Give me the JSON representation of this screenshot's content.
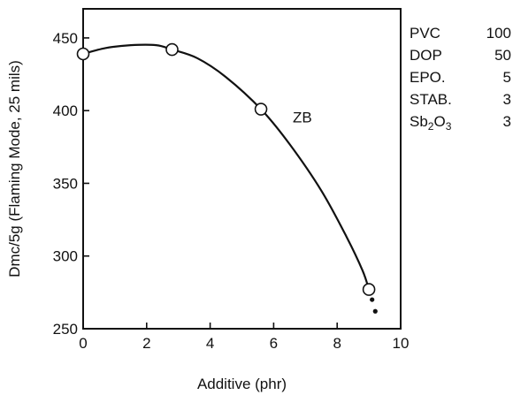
{
  "chart_data": {
    "type": "line",
    "title": "",
    "xlabel": "Additive (phr)",
    "ylabel": "Dmc/5g (Flaming Mode, 25 mils)",
    "xlim": [
      0,
      10
    ],
    "ylim": [
      250,
      470
    ],
    "x_ticks": [
      0,
      2,
      4,
      6,
      8,
      10
    ],
    "y_ticks": [
      250,
      300,
      350,
      400,
      450
    ],
    "grid": false,
    "series": [
      {
        "name": "ZB",
        "marker": "open-circle",
        "points": [
          [
            0.0,
            439
          ],
          [
            2.8,
            442
          ],
          [
            5.6,
            401
          ],
          [
            9.0,
            277
          ]
        ],
        "curve": [
          [
            0.0,
            439
          ],
          [
            0.7,
            443
          ],
          [
            1.5,
            445
          ],
          [
            2.3,
            445
          ],
          [
            2.8,
            442
          ],
          [
            3.6,
            436
          ],
          [
            4.5,
            423
          ],
          [
            5.6,
            401
          ],
          [
            6.5,
            377
          ],
          [
            7.5,
            345
          ],
          [
            8.3,
            313
          ],
          [
            8.8,
            290
          ],
          [
            9.0,
            277
          ]
        ]
      }
    ],
    "extra_points": [
      [
        9.1,
        270
      ],
      [
        9.2,
        262
      ]
    ],
    "annotations": [
      {
        "text": "ZB",
        "x": 6.6,
        "y": 392
      }
    ],
    "formulation": [
      {
        "name": "PVC",
        "value": "100"
      },
      {
        "name": "DOP",
        "value": "50"
      },
      {
        "name": "EPO.",
        "value": "5"
      },
      {
        "name": "STAB.",
        "value": "3"
      },
      {
        "name": "Sb",
        "sub": "2",
        "name_tail": "O",
        "sub2": "3",
        "value": "3"
      }
    ]
  }
}
